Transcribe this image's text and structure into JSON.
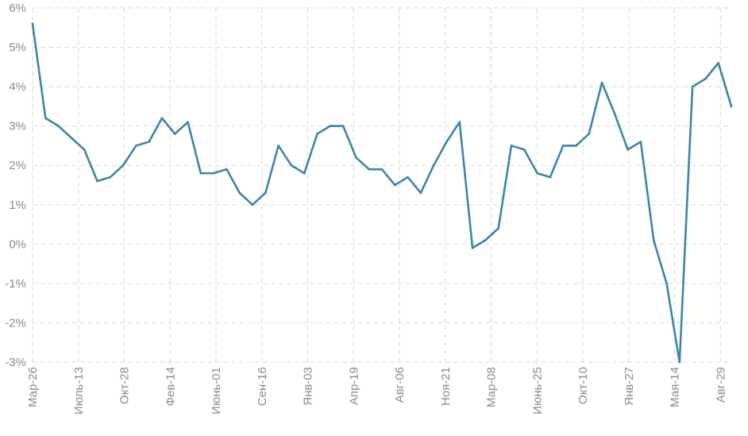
{
  "chart_data": {
    "type": "line",
    "title": "",
    "xlabel": "",
    "ylabel": "",
    "y_ticks": [
      "-3%",
      "-2%",
      "-1%",
      "0%",
      "1%",
      "2%",
      "3%",
      "4%",
      "5%",
      "6%"
    ],
    "ylim": [
      -3,
      6
    ],
    "x_ticks": [
      "Мар-26",
      "Июль-13",
      "Окт-28",
      "Фев-14",
      "Июнь-01",
      "Сен-16",
      "Янв-03",
      "Апр-19",
      "Авг-06",
      "Ноя-21",
      "Мар-08",
      "Июнь-25",
      "Окт-10",
      "Янв-27",
      "Мая-14",
      "Авг-29"
    ],
    "grid": true,
    "legend": "none",
    "color": "#3d86a6",
    "series": [
      {
        "values": [
          5.6,
          3.2,
          3.0,
          2.7,
          2.4,
          1.6,
          1.7,
          2.0,
          2.5,
          2.6,
          3.2,
          2.8,
          3.1,
          1.8,
          1.8,
          1.9,
          1.3,
          1.0,
          1.3,
          2.5,
          2.0,
          1.8,
          2.8,
          3.0,
          3.0,
          2.2,
          1.9,
          1.9,
          1.5,
          1.7,
          1.3,
          2.0,
          2.6,
          3.1,
          -0.1,
          0.1,
          0.4,
          2.5,
          2.4,
          1.8,
          1.7,
          2.5,
          2.5,
          2.8,
          4.1,
          3.3,
          2.4,
          2.6,
          0.1,
          -1.0,
          -3.0,
          4.0,
          4.2,
          4.6,
          3.5
        ]
      }
    ]
  }
}
